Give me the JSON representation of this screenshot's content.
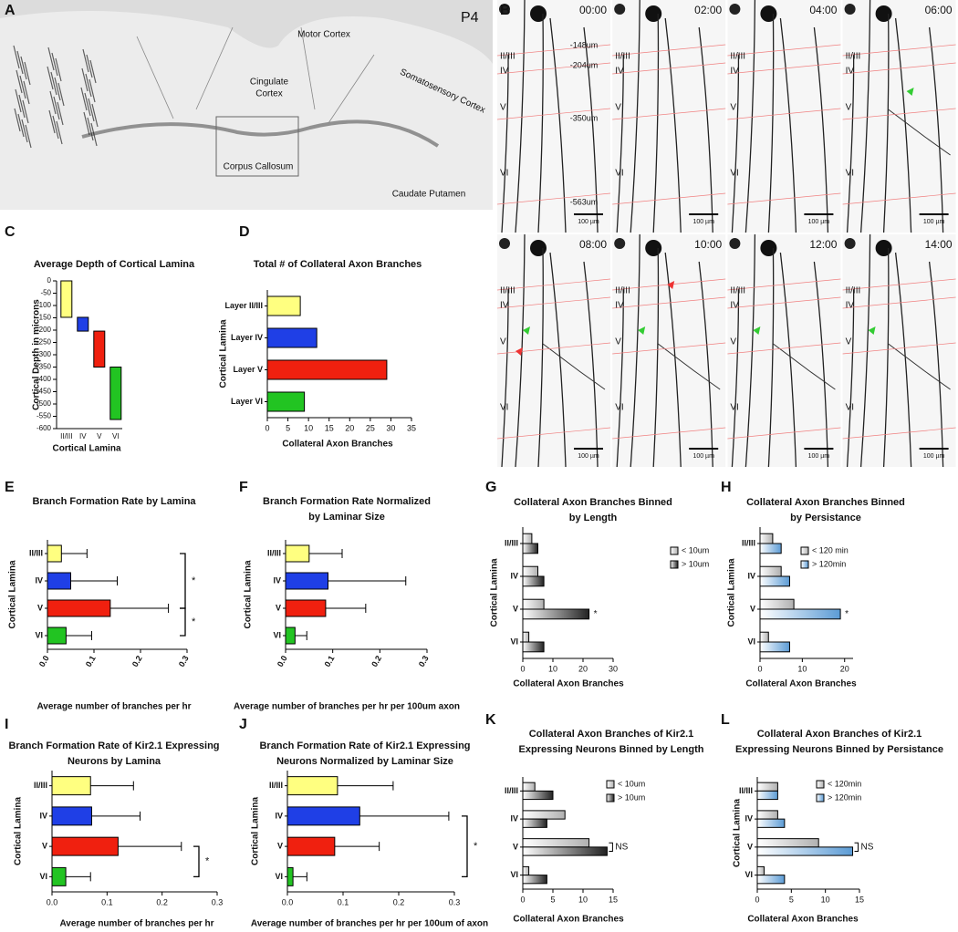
{
  "panel_a": {
    "panel": "A",
    "age": "P4",
    "regions": [
      "Motor Cortex",
      "Somatosensory Cortex",
      "Corpus Callosum",
      "Caudate Putamen"
    ],
    "cingulate": [
      "Cingulate",
      "Cortex"
    ]
  },
  "panel_b": {
    "panel": "B",
    "times": [
      "00:00",
      "02:00",
      "04:00",
      "06:00",
      "08:00",
      "10:00",
      "12:00",
      "14:00"
    ],
    "layers": [
      "II/III",
      "IV",
      "V",
      "VI"
    ],
    "depths": [
      "-148um",
      "-204um",
      "-350um",
      "-563um"
    ],
    "scale_bar": "100 µm"
  },
  "chart_data": [
    {
      "panel": "C",
      "type": "floating_bar",
      "title": [
        "Average Depth of Cortical Lamina"
      ],
      "y_label": "Cortical Depth in microns",
      "x_label": "Cortical Lamina",
      "categories": [
        "II/III",
        "IV",
        "V",
        "VI"
      ],
      "starts": [
        0,
        -148,
        -204,
        -350
      ],
      "ends": [
        -148,
        -204,
        -350,
        -563
      ],
      "colors": [
        "#ffff80",
        "#1f3fe6",
        "#f0200f",
        "#22c422"
      ],
      "ylim": [
        -600,
        0
      ],
      "yticks": [
        0,
        -50,
        -100,
        -150,
        -200,
        -250,
        -300,
        -350,
        -400,
        -450,
        -500,
        -550,
        -600
      ]
    },
    {
      "panel": "D",
      "type": "hbar",
      "title": [
        "Total # of Collateral Axon Branches"
      ],
      "y_label": "Cortical Lamina",
      "x_label": "Collateral Axon Branches",
      "categories": [
        "Layer II/III",
        "Layer IV",
        "Layer V",
        "Layer VI"
      ],
      "values": [
        8,
        12,
        29,
        9
      ],
      "colors": [
        "#ffff80",
        "#1f3fe6",
        "#f0200f",
        "#22c422"
      ],
      "xlim": [
        0,
        35
      ],
      "xticks": [
        0,
        5,
        10,
        15,
        20,
        25,
        30,
        35
      ]
    },
    {
      "panel": "E",
      "type": "hbar",
      "title": [
        "Branch Formation Rate by Lamina"
      ],
      "y_label": "Cortical Lamina",
      "x_label": "Average number of branches per hr",
      "categories": [
        "II/III",
        "IV",
        "V",
        "VI"
      ],
      "values": [
        0.03,
        0.05,
        0.135,
        0.04
      ],
      "errors": [
        0.055,
        0.1,
        0.125,
        0.055
      ],
      "colors": [
        "#ffff80",
        "#1f3fe6",
        "#f0200f",
        "#22c422"
      ],
      "xlim": [
        0,
        0.3
      ],
      "xticks": [
        {
          "value": 0,
          "label": "0.0"
        },
        0.1,
        0.2,
        0.3
      ],
      "annotations": [
        {
          "text": "*",
          "between": [
            "II/III",
            "V"
          ]
        },
        {
          "text": "*",
          "between": [
            "V",
            "VI"
          ]
        }
      ]
    },
    {
      "panel": "F",
      "type": "hbar",
      "title": [
        "Branch Formation Rate Normalized",
        "by Laminar Size"
      ],
      "y_label": "Cortical Lamina",
      "x_label": "Average number of branches per hr per 100um axon",
      "categories": [
        "II/III",
        "IV",
        "V",
        "VI"
      ],
      "values": [
        0.05,
        0.09,
        0.085,
        0.02
      ],
      "errors": [
        0.07,
        0.165,
        0.085,
        0.025
      ],
      "colors": [
        "#ffff80",
        "#1f3fe6",
        "#f0200f",
        "#22c422"
      ],
      "xlim": [
        0,
        0.3
      ],
      "xticks": [
        {
          "value": 0,
          "label": "0.0"
        },
        0.1,
        0.2,
        0.3
      ]
    },
    {
      "panel": "G",
      "type": "hbar",
      "title": [
        "Collateral Axon Branches Binned",
        "by Length"
      ],
      "y_label": "Cortical Lamina",
      "x_label": "Collateral Axon Branches",
      "categories": [
        "II/III",
        "IV",
        "V",
        "VI"
      ],
      "legend": "upper right",
      "series": [
        {
          "name": "< 10um",
          "color": "#b0b0b0",
          "values": [
            3,
            5,
            7,
            2
          ]
        },
        {
          "name": "> 10um",
          "color": "#222222",
          "values": [
            5,
            7,
            22,
            7
          ]
        }
      ],
      "xlim": [
        0,
        30
      ],
      "xticks": [
        0,
        10,
        20,
        30
      ],
      "annotations": [
        {
          "text": "*",
          "at": "V"
        }
      ]
    },
    {
      "panel": "H",
      "type": "hbar",
      "title": [
        "Collateral Axon Branches Binned",
        "by Persistance"
      ],
      "y_label": "Cortical Lamina",
      "x_label": "Collateral Axon Branches",
      "categories": [
        "II/III",
        "IV",
        "V",
        "VI"
      ],
      "legend": "upper right",
      "series": [
        {
          "name": "< 120 min",
          "color": "#b0b0b0",
          "values": [
            3,
            5,
            8,
            2
          ]
        },
        {
          "name": "> 120min",
          "color": "#5b9bd5",
          "values": [
            5,
            7,
            19,
            7
          ]
        }
      ],
      "xlim": [
        0,
        22
      ],
      "xticks": [
        0,
        10,
        20
      ],
      "annotations": [
        {
          "text": "*",
          "at": "V"
        }
      ]
    },
    {
      "panel": "I",
      "type": "hbar",
      "title": [
        "Branch Formation Rate of Kir2.1 Expressing",
        "Neurons by Lamina"
      ],
      "y_label": "Cortical Lamina",
      "x_label": "Average number of branches per hr",
      "categories": [
        "II/III",
        "IV",
        "V",
        "VI"
      ],
      "values": [
        0.07,
        0.072,
        0.12,
        0.025
      ],
      "errors": [
        0.078,
        0.088,
        0.115,
        0.045
      ],
      "colors": [
        "#ffff80",
        "#1f3fe6",
        "#f0200f",
        "#22c422"
      ],
      "xlim": [
        0,
        0.3
      ],
      "xticks": [
        {
          "value": 0,
          "label": "0.0"
        },
        0.1,
        0.2,
        0.3
      ],
      "annotations": [
        {
          "text": "*",
          "between": [
            "V",
            "VI"
          ]
        }
      ]
    },
    {
      "panel": "J",
      "type": "hbar",
      "title": [
        "Branch Formation Rate of Kir2.1 Expressing",
        "Neurons Normalized by Laminar Size"
      ],
      "y_label": "Cortical Lamina",
      "x_label": "Average number of branches per hr per 100um of axon",
      "categories": [
        "II/III",
        "IV",
        "V",
        "VI"
      ],
      "values": [
        0.09,
        0.13,
        0.085,
        0.01
      ],
      "errors": [
        0.1,
        0.16,
        0.08,
        0.025
      ],
      "colors": [
        "#ffff80",
        "#1f3fe6",
        "#f0200f",
        "#22c422"
      ],
      "xlim": [
        0,
        0.3
      ],
      "xticks": [
        {
          "value": 0,
          "label": "0.0"
        },
        0.1,
        0.2,
        0.3
      ],
      "annotations": [
        {
          "text": "*",
          "between": [
            "IV",
            "VI"
          ]
        }
      ]
    },
    {
      "panel": "K",
      "type": "hbar",
      "title": [
        "Collateral Axon Branches of Kir2.1",
        "Expressing Neurons Binned by Length"
      ],
      "x_label": "Collateral Axon Branches",
      "categories": [
        "II/III",
        "IV",
        "V",
        "VI"
      ],
      "legend": "upper right",
      "series": [
        {
          "name": "< 10um",
          "color": "#b0b0b0",
          "values": [
            2,
            7,
            11,
            1
          ]
        },
        {
          "name": "> 10um",
          "color": "#222222",
          "values": [
            5,
            4,
            14,
            4
          ]
        }
      ],
      "xlim": [
        0,
        15
      ],
      "xticks": [
        0,
        5,
        10,
        15
      ],
      "annotations": [
        {
          "text": "NS",
          "at": "V",
          "bracket": true
        }
      ]
    },
    {
      "panel": "L",
      "type": "hbar",
      "title": [
        "Collateral Axon Branches of Kir2.1",
        "Expressing Neurons Binned by Persistance"
      ],
      "y_label": "Cortical Lamina",
      "x_label": "Collateral Axon Branches",
      "categories": [
        "II/III",
        "IV",
        "V",
        "VI"
      ],
      "legend": "upper right",
      "series": [
        {
          "name": "< 120min",
          "color": "#b0b0b0",
          "values": [
            3,
            3,
            9,
            1
          ]
        },
        {
          "name": "> 120min",
          "color": "#5b9bd5",
          "values": [
            3,
            4,
            14,
            4
          ]
        }
      ],
      "xlim": [
        0,
        15
      ],
      "xticks": [
        0,
        5,
        10,
        15
      ],
      "annotations": [
        {
          "text": "NS",
          "at": "V",
          "bracket": true
        }
      ]
    }
  ]
}
